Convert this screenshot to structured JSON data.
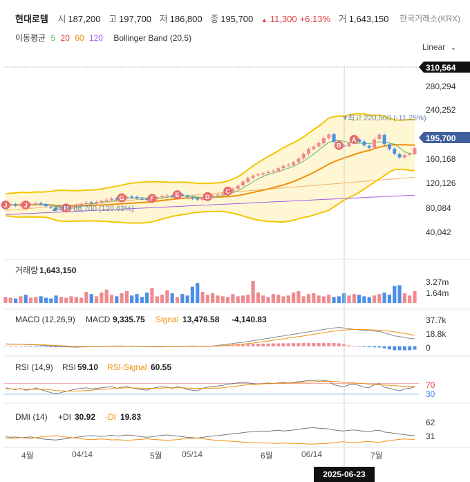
{
  "header": {
    "name": "현대로템",
    "open_label": "시",
    "open": "187,200",
    "high_label": "고",
    "high": "197,700",
    "low_label": "저",
    "low": "186,800",
    "close_label": "종",
    "close": "195,700",
    "change_arrow": "▲",
    "change": "11,300",
    "change_pct": "+6.13%",
    "volume_label": "거",
    "volume": "1,643,150",
    "exchange": "한국거래소(KRX)",
    "ma_label": "이동평균",
    "ma_periods": [
      "5",
      "20",
      "60",
      "120"
    ],
    "bb_label": "Bollinger Band (20,5)",
    "scale": "Linear",
    "scale_icon": "chevron-down-icon"
  },
  "chart_data": [
    {
      "type": "candlestick",
      "price_ticks": [
        "280,294",
        "240,252",
        "160,168",
        "120,126",
        "80,084",
        "40,042"
      ],
      "top_badge": "310,564",
      "last_badge": "195,700",
      "ylim": [
        20000,
        330000
      ],
      "high_annotation": "최고 220,500 (-11.25%)",
      "low_annotation": "최저 88,700 (120.63%)",
      "marker_icons": [
        "J",
        "J",
        "H",
        "G",
        "F",
        "E",
        "D",
        "C",
        "B",
        "A"
      ],
      "close": [
        101000,
        102000,
        100000,
        103000,
        101000,
        102000,
        104000,
        102000,
        99000,
        97000,
        93000,
        94000,
        96000,
        98000,
        101000,
        103000,
        105000,
        104000,
        106000,
        108000,
        110000,
        112000,
        110000,
        113000,
        115000,
        114000,
        112000,
        111000,
        110000,
        112000,
        114000,
        116000,
        117000,
        115000,
        118000,
        117000,
        114000,
        112000,
        110000,
        113000,
        115000,
        117000,
        118000,
        120000,
        124000,
        128000,
        133000,
        140000,
        146000,
        150000,
        152000,
        154000,
        156000,
        158000,
        162000,
        166000,
        168000,
        172000,
        178000,
        186000,
        194000,
        198000,
        204000,
        212000,
        218000,
        206000,
        200000,
        198000,
        204000,
        210000,
        206000,
        200000,
        196000,
        210000,
        218000,
        202000,
        194000,
        186000,
        180000,
        184000,
        186000,
        195700
      ],
      "ma_lines": [
        "5",
        "20",
        "60",
        "120"
      ],
      "series_colors": {
        "ma5": "#5cb85c",
        "ma20": "#f0900c",
        "ma60": "#f5b266",
        "ma120": "#a25ce0",
        "bb": "#f2c500",
        "up": "#f08a8f",
        "down": "#4d8fe8"
      }
    },
    {
      "type": "bar",
      "label": "거래량",
      "value": "1,643,150",
      "ticks": [
        "3.27m",
        "1.64m"
      ],
      "values": [
        0.8,
        0.7,
        0.6,
        0.9,
        1.1,
        0.7,
        0.8,
        0.9,
        0.7,
        0.6,
        1.0,
        0.8,
        0.7,
        0.9,
        0.8,
        0.7,
        1.5,
        1.2,
        0.9,
        1.4,
        1.8,
        1.1,
        0.9,
        1.3,
        1.6,
        1.0,
        1.2,
        0.8,
        1.4,
        2.0,
        0.9,
        1.1,
        1.7,
        1.3,
        0.8,
        1.2,
        1.0,
        2.2,
        2.7,
        1.5,
        1.1,
        1.3,
        1.0,
        0.9,
        0.8,
        1.2,
        0.9,
        1.0,
        1.1,
        3.0,
        1.4,
        1.0,
        0.8,
        1.2,
        1.1,
        0.9,
        1.0,
        1.4,
        1.6,
        0.9,
        1.2,
        1.3,
        1.0,
        0.9,
        1.1,
        0.8,
        0.9,
        1.3,
        1.0,
        1.2,
        1.1,
        0.9,
        0.8,
        1.0,
        1.2,
        1.4,
        1.1,
        2.3,
        2.4,
        1.3,
        1.0,
        1.6
      ]
    },
    {
      "type": "line",
      "label": "MACD (12,26,9)",
      "macd_label": "MACD",
      "macd": "9,335.75",
      "signal_label": "Signal",
      "signal": "13,476.58",
      "hist": "-4,140.83",
      "ticks": [
        "37.7k",
        "18.8k",
        "0"
      ],
      "macd_values": [
        3,
        2.8,
        2.6,
        2.4,
        2.2,
        2,
        1.6,
        1.2,
        0.8,
        0.4,
        -0.2,
        -0.6,
        -0.8,
        -1,
        -1.2,
        -1,
        -0.8,
        -0.6,
        -0.4,
        -0.2,
        0,
        0.2,
        0.4,
        0.3,
        0.2,
        0.1,
        0,
        -0.2,
        -0.4,
        -0.6,
        -0.8,
        -0.8,
        -0.6,
        -0.4,
        -0.2,
        0,
        0.2,
        0.3,
        0.2,
        0.1,
        0,
        0.4,
        1,
        1.8,
        2.6,
        3.4,
        4.2,
        5,
        6,
        7,
        8,
        9,
        10,
        11,
        12,
        13,
        14,
        15,
        16,
        17,
        18,
        19,
        20,
        21,
        22,
        23,
        23.5,
        23,
        22,
        21,
        20.5,
        20,
        19.5,
        19,
        18.5,
        17,
        15,
        13,
        12,
        11,
        10,
        9.3
      ],
      "signal_values": [
        2.5,
        2.5,
        2.4,
        2.3,
        2.2,
        2.1,
        2,
        1.8,
        1.6,
        1.3,
        1,
        0.6,
        0.3,
        0,
        -0.3,
        -0.5,
        -0.6,
        -0.6,
        -0.5,
        -0.4,
        -0.3,
        -0.1,
        0,
        0.1,
        0.2,
        0.2,
        0.1,
        0,
        -0.1,
        -0.2,
        -0.3,
        -0.4,
        -0.5,
        -0.5,
        -0.4,
        -0.3,
        -0.2,
        -0.1,
        0,
        0.1,
        0.1,
        0.2,
        0.4,
        0.8,
        1.2,
        1.7,
        2.2,
        2.8,
        3.4,
        4.1,
        4.9,
        5.7,
        6.6,
        7.5,
        8.4,
        9.3,
        10.2,
        11.1,
        12.1,
        13,
        14,
        15,
        16,
        17,
        18,
        19,
        19.8,
        20.4,
        20.8,
        21,
        21,
        20.9,
        20.7,
        20.4,
        20.1,
        19.6,
        18.9,
        18,
        17,
        16,
        15,
        13.5
      ]
    },
    {
      "type": "line",
      "label": "RSI (14,9)",
      "rsi_label": "RSI",
      "rsi": "59.10",
      "signal_label": "RSI-Signal",
      "signal": "60.55",
      "ticks": [
        "70",
        "30"
      ],
      "rsi_values": [
        56,
        52,
        50,
        54,
        48,
        50,
        55,
        50,
        44,
        40,
        36,
        40,
        44,
        48,
        52,
        54,
        56,
        52,
        54,
        56,
        58,
        60,
        54,
        58,
        60,
        56,
        52,
        50,
        48,
        54,
        58,
        60,
        58,
        54,
        60,
        56,
        50,
        48,
        46,
        54,
        58,
        60,
        62,
        64,
        68,
        70,
        72,
        74,
        72,
        70,
        68,
        70,
        72,
        70,
        72,
        74,
        72,
        74,
        76,
        78,
        80,
        80,
        82,
        80,
        78,
        66,
        62,
        60,
        66,
        68,
        64,
        58,
        56,
        66,
        70,
        58,
        54,
        50,
        46,
        52,
        54,
        59.1
      ],
      "signal_values": [
        52,
        52,
        52,
        52,
        51,
        51,
        51,
        51,
        50,
        49,
        47,
        46,
        45,
        45,
        45,
        46,
        47,
        48,
        50,
        51,
        52,
        53,
        54,
        55,
        56,
        56,
        55,
        55,
        54,
        54,
        55,
        55,
        56,
        56,
        56,
        56,
        55,
        55,
        54,
        54,
        54,
        55,
        55,
        56,
        58,
        60,
        62,
        64,
        66,
        67,
        68,
        69,
        70,
        70,
        71,
        71,
        72,
        72,
        73,
        74,
        75,
        76,
        77,
        77,
        78,
        77,
        76,
        74,
        73,
        72,
        71,
        70,
        68,
        67,
        66,
        65,
        64,
        63,
        62,
        61,
        61,
        60.55
      ]
    },
    {
      "type": "line",
      "label": "DMI (14)",
      "pdi_label": "+DI",
      "pdi": "30.92",
      "mdi_label": "-DI",
      "mdi": "19.83",
      "ticks": [
        "62",
        "31"
      ],
      "pdi_values": [
        28,
        26,
        27,
        25,
        26,
        27,
        24,
        22,
        20,
        19,
        18,
        20,
        22,
        24,
        26,
        28,
        30,
        31,
        30,
        29,
        30,
        32,
        30,
        31,
        33,
        32,
        30,
        28,
        26,
        28,
        30,
        32,
        33,
        31,
        30,
        28,
        26,
        25,
        24,
        26,
        28,
        30,
        31,
        33,
        35,
        37,
        38,
        40,
        42,
        43,
        44,
        45,
        44,
        46,
        47,
        45,
        46,
        48,
        50,
        52,
        54,
        55,
        53,
        52,
        51,
        48,
        46,
        45,
        47,
        48,
        46,
        44,
        43,
        46,
        47,
        42,
        40,
        38,
        36,
        34,
        32,
        30.92
      ],
      "mdi_values": [
        22,
        24,
        23,
        25,
        24,
        23,
        25,
        27,
        29,
        30,
        31,
        29,
        27,
        25,
        24,
        22,
        20,
        19,
        20,
        21,
        20,
        18,
        19,
        18,
        17,
        18,
        19,
        20,
        22,
        20,
        19,
        18,
        17,
        18,
        19,
        21,
        22,
        23,
        24,
        22,
        20,
        18,
        17,
        16,
        15,
        14,
        13,
        12,
        11,
        10,
        10,
        9,
        9,
        8,
        8,
        9,
        8,
        8,
        7,
        7,
        6,
        6,
        7,
        7,
        8,
        10,
        12,
        13,
        11,
        10,
        11,
        13,
        14,
        12,
        11,
        14,
        16,
        18,
        20,
        21,
        20,
        19.83
      ]
    }
  ],
  "x_axis": {
    "labels": [
      "4월",
      "04/14",
      "5월",
      "05/14",
      "6월",
      "06/14",
      "7월"
    ],
    "selected": "2025-06-23"
  }
}
